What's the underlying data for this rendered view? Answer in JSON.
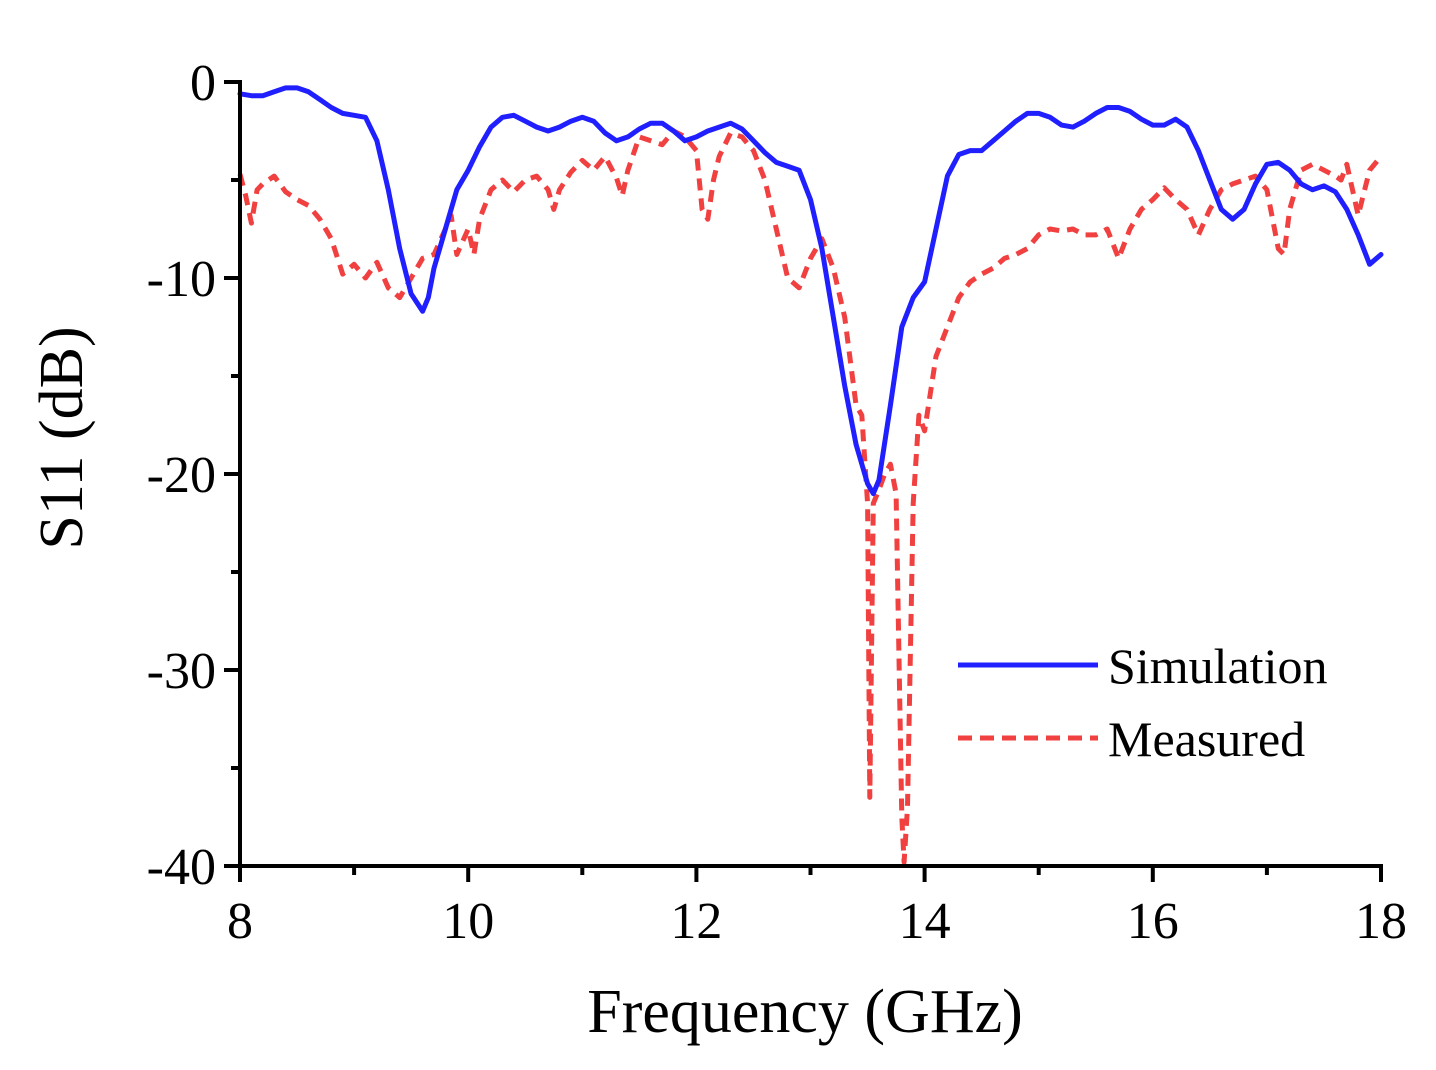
{
  "chart_data": {
    "type": "line",
    "title": "",
    "xlabel": "Frequency (GHz)",
    "ylabel": "S11 (dB)",
    "xlim": [
      8,
      18
    ],
    "ylim": [
      -40,
      0
    ],
    "xticks": [
      8,
      10,
      12,
      14,
      16,
      18
    ],
    "yticks": [
      0,
      -10,
      -20,
      -30,
      -40
    ],
    "xtick_labels": [
      "8",
      "10",
      "12",
      "14",
      "16",
      "18"
    ],
    "ytick_labels": [
      "0",
      "-10",
      "-20",
      "-30",
      "-40"
    ],
    "legend_position": "bottom-right",
    "series": [
      {
        "name": "Simulation",
        "color": "#1f1fff",
        "style": "solid",
        "x": [
          8.0,
          8.1,
          8.2,
          8.3,
          8.4,
          8.5,
          8.6,
          8.7,
          8.8,
          8.9,
          9.0,
          9.1,
          9.2,
          9.3,
          9.4,
          9.5,
          9.6,
          9.65,
          9.7,
          9.8,
          9.9,
          10.0,
          10.1,
          10.2,
          10.3,
          10.4,
          10.5,
          10.6,
          10.7,
          10.8,
          10.9,
          11.0,
          11.1,
          11.2,
          11.3,
          11.4,
          11.5,
          11.6,
          11.7,
          11.8,
          11.9,
          12.0,
          12.1,
          12.2,
          12.3,
          12.4,
          12.5,
          12.6,
          12.7,
          12.8,
          12.9,
          13.0,
          13.1,
          13.2,
          13.3,
          13.4,
          13.5,
          13.55,
          13.6,
          13.7,
          13.8,
          13.9,
          14.0,
          14.1,
          14.2,
          14.3,
          14.4,
          14.5,
          14.6,
          14.7,
          14.8,
          14.9,
          15.0,
          15.1,
          15.2,
          15.3,
          15.4,
          15.5,
          15.6,
          15.7,
          15.8,
          15.9,
          16.0,
          16.1,
          16.2,
          16.3,
          16.4,
          16.5,
          16.6,
          16.7,
          16.8,
          16.9,
          17.0,
          17.1,
          17.2,
          17.3,
          17.4,
          17.5,
          17.6,
          17.7,
          17.8,
          17.9,
          18.0
        ],
        "y": [
          -0.6,
          -0.7,
          -0.7,
          -0.5,
          -0.3,
          -0.3,
          -0.5,
          -0.9,
          -1.3,
          -1.6,
          -1.7,
          -1.8,
          -3.0,
          -5.5,
          -8.5,
          -10.8,
          -11.7,
          -11.0,
          -9.5,
          -7.5,
          -5.5,
          -4.5,
          -3.3,
          -2.3,
          -1.8,
          -1.7,
          -2.0,
          -2.3,
          -2.5,
          -2.3,
          -2.0,
          -1.8,
          -2.0,
          -2.6,
          -3.0,
          -2.8,
          -2.4,
          -2.1,
          -2.1,
          -2.5,
          -3.0,
          -2.8,
          -2.5,
          -2.3,
          -2.1,
          -2.4,
          -3.0,
          -3.6,
          -4.1,
          -4.3,
          -4.5,
          -6.0,
          -8.5,
          -12.0,
          -15.5,
          -18.5,
          -20.5,
          -21.0,
          -20.3,
          -16.5,
          -12.5,
          -11.0,
          -10.2,
          -7.5,
          -4.8,
          -3.7,
          -3.5,
          -3.5,
          -3.0,
          -2.5,
          -2.0,
          -1.6,
          -1.6,
          -1.8,
          -2.2,
          -2.3,
          -2.0,
          -1.6,
          -1.3,
          -1.3,
          -1.5,
          -1.9,
          -2.2,
          -2.2,
          -1.9,
          -2.3,
          -3.5,
          -5.0,
          -6.5,
          -7.0,
          -6.5,
          -5.2,
          -4.2,
          -4.1,
          -4.5,
          -5.2,
          -5.5,
          -5.3,
          -5.6,
          -6.5,
          -7.8,
          -9.3,
          -8.8
        ]
      },
      {
        "name": "Measured",
        "color": "#f04040",
        "style": "dashed",
        "x": [
          8.0,
          8.05,
          8.1,
          8.15,
          8.2,
          8.3,
          8.4,
          8.5,
          8.6,
          8.7,
          8.8,
          8.9,
          9.0,
          9.1,
          9.2,
          9.3,
          9.4,
          9.5,
          9.6,
          9.7,
          9.8,
          9.85,
          9.9,
          10.0,
          10.05,
          10.1,
          10.2,
          10.3,
          10.4,
          10.5,
          10.6,
          10.7,
          10.75,
          10.8,
          10.9,
          11.0,
          11.1,
          11.2,
          11.3,
          11.35,
          11.4,
          11.5,
          11.6,
          11.7,
          11.8,
          11.9,
          12.0,
          12.05,
          12.1,
          12.15,
          12.2,
          12.3,
          12.4,
          12.5,
          12.6,
          12.7,
          12.8,
          12.9,
          13.0,
          13.1,
          13.2,
          13.3,
          13.4,
          13.45,
          13.5,
          13.52,
          13.55,
          13.6,
          13.65,
          13.7,
          13.75,
          13.8,
          13.82,
          13.85,
          13.9,
          13.95,
          14.0,
          14.1,
          14.2,
          14.3,
          14.4,
          14.5,
          14.6,
          14.7,
          14.8,
          14.9,
          15.0,
          15.1,
          15.2,
          15.3,
          15.4,
          15.5,
          15.6,
          15.7,
          15.8,
          15.9,
          16.0,
          16.1,
          16.2,
          16.3,
          16.4,
          16.5,
          16.6,
          16.7,
          16.8,
          16.9,
          17.0,
          17.1,
          17.15,
          17.2,
          17.3,
          17.4,
          17.5,
          17.6,
          17.65,
          17.7,
          17.8,
          17.9,
          18.0
        ],
        "y": [
          -4.7,
          -5.8,
          -7.2,
          -5.5,
          -5.2,
          -4.8,
          -5.6,
          -6.0,
          -6.3,
          -7.0,
          -8.0,
          -9.8,
          -9.3,
          -10.0,
          -9.2,
          -10.5,
          -11.0,
          -10.0,
          -9.0,
          -8.8,
          -7.5,
          -6.8,
          -8.8,
          -7.5,
          -8.8,
          -7.0,
          -5.5,
          -5.0,
          -5.6,
          -5.0,
          -4.8,
          -5.5,
          -6.5,
          -5.5,
          -4.6,
          -4.0,
          -4.5,
          -3.8,
          -4.9,
          -5.8,
          -4.5,
          -2.8,
          -3.0,
          -3.2,
          -2.5,
          -2.8,
          -3.5,
          -6.5,
          -7.0,
          -5.0,
          -3.8,
          -2.6,
          -2.8,
          -3.5,
          -5.0,
          -7.5,
          -10.0,
          -10.5,
          -9.0,
          -8.0,
          -9.5,
          -12.0,
          -16.5,
          -17.0,
          -21.5,
          -36.5,
          -21.5,
          -20.8,
          -20.0,
          -19.5,
          -21.0,
          -37.5,
          -39.8,
          -37.0,
          -21.5,
          -17.0,
          -17.8,
          -14.0,
          -12.5,
          -11.0,
          -10.2,
          -9.8,
          -9.5,
          -9.0,
          -8.8,
          -8.5,
          -7.8,
          -7.5,
          -7.6,
          -7.5,
          -7.8,
          -7.8,
          -7.5,
          -9.0,
          -7.5,
          -6.5,
          -6.0,
          -5.4,
          -6.0,
          -6.5,
          -7.8,
          -6.5,
          -5.5,
          -5.2,
          -5.0,
          -4.8,
          -5.5,
          -8.5,
          -8.8,
          -6.5,
          -4.5,
          -4.2,
          -4.5,
          -4.8,
          -5.0,
          -4.2,
          -6.8,
          -4.5,
          -3.8
        ]
      }
    ]
  }
}
